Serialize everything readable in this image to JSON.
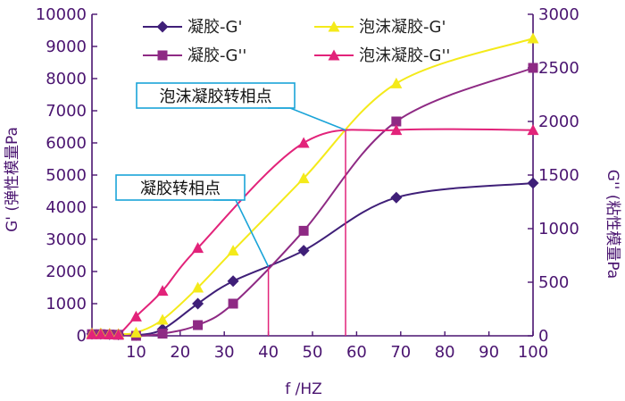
{
  "chart_data": {
    "type": "line",
    "x_label": "f /HZ",
    "y_left_label": "G' (弹性模量Pa",
    "y_right_label": "G'' (粘性模量Pa",
    "x_ticks": [
      10,
      20,
      30,
      40,
      50,
      60,
      70,
      80,
      90,
      100
    ],
    "y_left_ticks": [
      0,
      1000,
      2000,
      3000,
      4000,
      5000,
      6000,
      7000,
      8000,
      9000,
      10000
    ],
    "y_right_ticks": [
      0,
      500,
      1000,
      1500,
      2000,
      2500,
      3000
    ],
    "x_range": [
      0,
      100
    ],
    "y_left_range": [
      0,
      10000
    ],
    "y_right_range": [
      0,
      3000
    ],
    "series": [
      {
        "name": "凝胶-G'",
        "axis": "left",
        "marker": "diamond",
        "color": "#3f1f78",
        "x": [
          0,
          2,
          4,
          6,
          10,
          16,
          24,
          32,
          48,
          69,
          100
        ],
        "y": [
          60,
          60,
          50,
          40,
          20,
          200,
          1000,
          1700,
          2650,
          4300,
          4750
        ]
      },
      {
        "name": "凝胶-G''",
        "axis": "right",
        "marker": "square",
        "color": "#8e2a84",
        "x": [
          0,
          2,
          4,
          6,
          10,
          16,
          24,
          32,
          48,
          69,
          100
        ],
        "y": [
          15,
          15,
          12,
          10,
          0,
          20,
          100,
          300,
          980,
          2000,
          2500
        ]
      },
      {
        "name": "泡沫凝胶-G'",
        "axis": "left",
        "marker": "triangle",
        "color": "#f4ea1a",
        "x": [
          0,
          2,
          4,
          6,
          10,
          16,
          24,
          32,
          48,
          69,
          100
        ],
        "y": [
          80,
          80,
          70,
          60,
          100,
          500,
          1500,
          2650,
          4900,
          7850,
          9250
        ]
      },
      {
        "name": "泡沫凝胶-G''",
        "axis": "right",
        "marker": "triangle",
        "color": "#e2237a",
        "x": [
          0,
          2,
          4,
          6,
          10,
          16,
          24,
          48,
          69,
          100
        ],
        "y": [
          15,
          15,
          12,
          10,
          180,
          420,
          820,
          1800,
          1920,
          1920
        ]
      }
    ],
    "annotations": [
      {
        "text": "泡沫凝胶转相点",
        "x": 57.5,
        "y_left": 6400
      },
      {
        "text": "凝胶转相点",
        "x": 40,
        "y_left": 2150
      }
    ],
    "legend": "top-center"
  }
}
